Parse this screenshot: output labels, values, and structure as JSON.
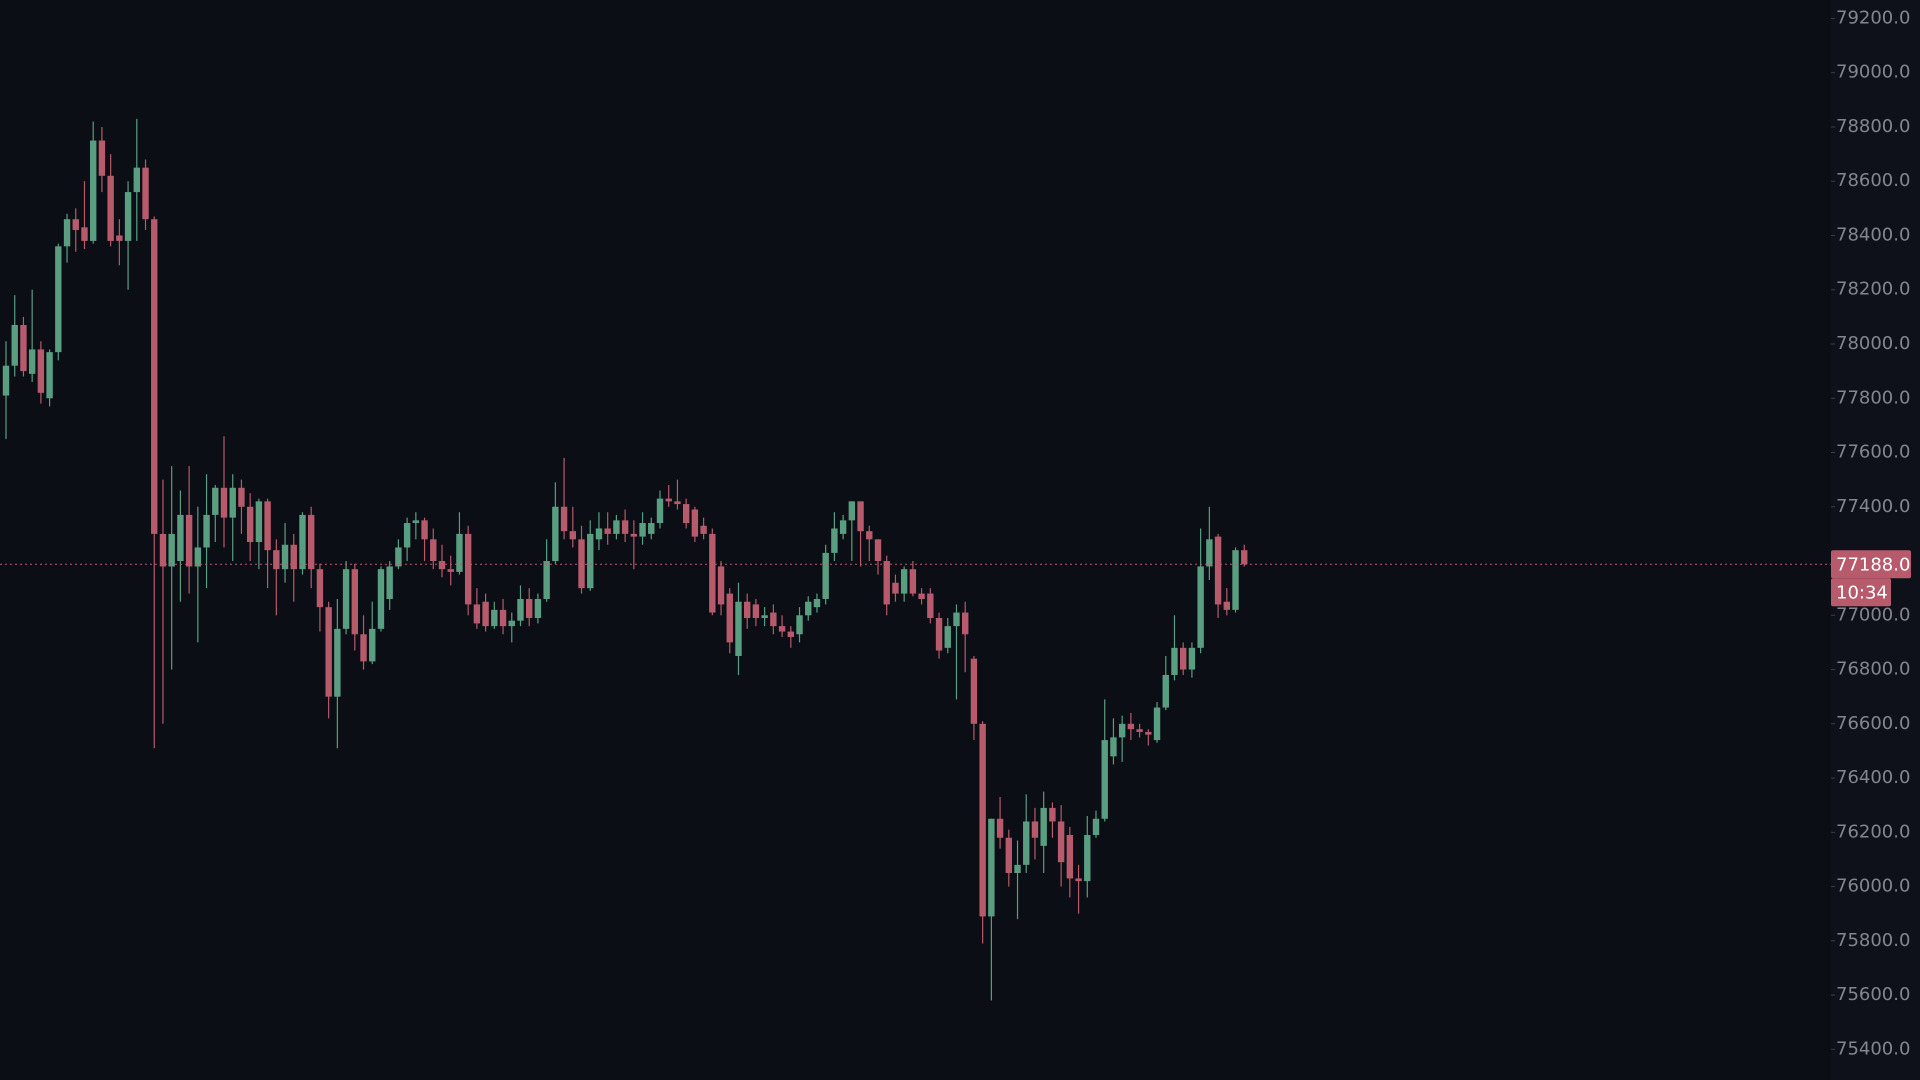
{
  "chart_data": {
    "type": "candlestick",
    "up_color": "#5a9e82",
    "down_color": "#b65a6c",
    "ylim": [
      75287,
      79268
    ],
    "yticks": [
      {
        "value": 79200,
        "label": "79200.0"
      },
      {
        "value": 79000,
        "label": "79000.0"
      },
      {
        "value": 78800,
        "label": "78800.0"
      },
      {
        "value": 78600,
        "label": "78600.0"
      },
      {
        "value": 78400,
        "label": "78400.0"
      },
      {
        "value": 78200,
        "label": "78200.0"
      },
      {
        "value": 78000,
        "label": "78000.0"
      },
      {
        "value": 77800,
        "label": "77800.0"
      },
      {
        "value": 77600,
        "label": "77600.0"
      },
      {
        "value": 77400,
        "label": "77400.0"
      },
      {
        "value": 77000,
        "label": "77000.0"
      },
      {
        "value": 76800,
        "label": "76800.0"
      },
      {
        "value": 76600,
        "label": "76600.0"
      },
      {
        "value": 76400,
        "label": "76400.0"
      },
      {
        "value": 76200,
        "label": "76200.0"
      },
      {
        "value": 76000,
        "label": "76000.0"
      },
      {
        "value": 75800,
        "label": "75800.0"
      },
      {
        "value": 75600,
        "label": "75600.0"
      },
      {
        "value": 75400,
        "label": "75400.0"
      }
    ],
    "last_price": {
      "value": 77188,
      "label": "77188.0"
    },
    "countdown": "10:34",
    "ohlc": [
      [
        77810,
        78010,
        77650,
        77920
      ],
      [
        77920,
        78180,
        77880,
        78070
      ],
      [
        78070,
        78100,
        77880,
        77900
      ],
      [
        77890,
        78200,
        77860,
        77980
      ],
      [
        77980,
        78010,
        77780,
        77820
      ],
      [
        77800,
        77980,
        77770,
        77970
      ],
      [
        77970,
        78370,
        77940,
        78360
      ],
      [
        78360,
        78480,
        78300,
        78460
      ],
      [
        78460,
        78500,
        78340,
        78420
      ],
      [
        78430,
        78600,
        78350,
        78380
      ],
      [
        78380,
        78820,
        78370,
        78750
      ],
      [
        78750,
        78800,
        78560,
        78620
      ],
      [
        78620,
        78700,
        78360,
        78380
      ],
      [
        78400,
        78460,
        78290,
        78380
      ],
      [
        78380,
        78600,
        78200,
        78560
      ],
      [
        78560,
        78830,
        78380,
        78650
      ],
      [
        78650,
        78680,
        78420,
        78460
      ],
      [
        78460,
        78470,
        76510,
        77300
      ],
      [
        77300,
        77500,
        76600,
        77180
      ],
      [
        77180,
        77550,
        76800,
        77300
      ],
      [
        77200,
        77460,
        77050,
        77370
      ],
      [
        77370,
        77550,
        77080,
        77180
      ],
      [
        77180,
        77400,
        76900,
        77250
      ],
      [
        77250,
        77520,
        77100,
        77370
      ],
      [
        77370,
        77480,
        77270,
        77470
      ],
      [
        77470,
        77660,
        77250,
        77360
      ],
      [
        77360,
        77520,
        77200,
        77470
      ],
      [
        77470,
        77500,
        77300,
        77400
      ],
      [
        77400,
        77450,
        77200,
        77270
      ],
      [
        77270,
        77430,
        77170,
        77420
      ],
      [
        77420,
        77430,
        77100,
        77240
      ],
      [
        77240,
        77280,
        77000,
        77170
      ],
      [
        77170,
        77340,
        77120,
        77260
      ],
      [
        77260,
        77300,
        77050,
        77170
      ],
      [
        77170,
        77380,
        77150,
        77370
      ],
      [
        77370,
        77400,
        77100,
        77170
      ],
      [
        77170,
        77190,
        76940,
        77030
      ],
      [
        77030,
        77050,
        76620,
        76700
      ],
      [
        76700,
        77060,
        76510,
        76950
      ],
      [
        76950,
        77200,
        76930,
        77170
      ],
      [
        77170,
        77190,
        76870,
        76930
      ],
      [
        76930,
        77000,
        76800,
        76830
      ],
      [
        76830,
        77050,
        76820,
        76950
      ],
      [
        76950,
        77180,
        76940,
        77170
      ],
      [
        77060,
        77200,
        77020,
        77180
      ],
      [
        77180,
        77280,
        77170,
        77250
      ],
      [
        77250,
        77360,
        77200,
        77340
      ],
      [
        77340,
        77380,
        77280,
        77350
      ],
      [
        77350,
        77360,
        77200,
        77280
      ],
      [
        77280,
        77320,
        77170,
        77200
      ],
      [
        77200,
        77260,
        77140,
        77170
      ],
      [
        77170,
        77220,
        77110,
        77160
      ],
      [
        77160,
        77380,
        77150,
        77300
      ],
      [
        77300,
        77330,
        77000,
        77040
      ],
      [
        77040,
        77100,
        76950,
        76970
      ],
      [
        77050,
        77080,
        76940,
        76960
      ],
      [
        76960,
        77050,
        76950,
        77020
      ],
      [
        77020,
        77060,
        76930,
        76960
      ],
      [
        76960,
        77010,
        76900,
        76980
      ],
      [
        76980,
        77110,
        76960,
        77060
      ],
      [
        77060,
        77100,
        76960,
        76990
      ],
      [
        76990,
        77080,
        76970,
        77060
      ],
      [
        77060,
        77280,
        77050,
        77200
      ],
      [
        77200,
        77490,
        77190,
        77400
      ],
      [
        77400,
        77580,
        77280,
        77310
      ],
      [
        77310,
        77400,
        77250,
        77280
      ],
      [
        77280,
        77330,
        77080,
        77100
      ],
      [
        77100,
        77350,
        77090,
        77300
      ],
      [
        77280,
        77380,
        77240,
        77320
      ],
      [
        77320,
        77380,
        77260,
        77300
      ],
      [
        77300,
        77370,
        77280,
        77350
      ],
      [
        77350,
        77390,
        77270,
        77300
      ],
      [
        77300,
        77350,
        77170,
        77290
      ],
      [
        77290,
        77380,
        77260,
        77340
      ],
      [
        77300,
        77360,
        77280,
        77340
      ],
      [
        77340,
        77460,
        77320,
        77430
      ],
      [
        77430,
        77480,
        77400,
        77420
      ],
      [
        77420,
        77500,
        77390,
        77410
      ],
      [
        77410,
        77430,
        77320,
        77340
      ],
      [
        77390,
        77400,
        77270,
        77290
      ],
      [
        77330,
        77360,
        77280,
        77300
      ],
      [
        77300,
        77320,
        77000,
        77010
      ],
      [
        77180,
        77200,
        77000,
        77040
      ],
      [
        77080,
        77100,
        76860,
        76900
      ],
      [
        76850,
        77120,
        76780,
        77050
      ],
      [
        77050,
        77080,
        76950,
        76990
      ],
      [
        77040,
        77060,
        76960,
        76990
      ],
      [
        76990,
        77030,
        76960,
        77000
      ],
      [
        77010,
        77040,
        76930,
        76960
      ],
      [
        76960,
        77000,
        76920,
        76940
      ],
      [
        76940,
        76960,
        76880,
        76920
      ],
      [
        76930,
        77030,
        76900,
        77000
      ],
      [
        77000,
        77070,
        76980,
        77050
      ],
      [
        77030,
        77080,
        77010,
        77060
      ],
      [
        77060,
        77260,
        77040,
        77230
      ],
      [
        77230,
        77380,
        77200,
        77320
      ],
      [
        77300,
        77370,
        77280,
        77350
      ],
      [
        77350,
        77420,
        77200,
        77420
      ],
      [
        77420,
        77420,
        77180,
        77310
      ],
      [
        77310,
        77330,
        77200,
        77280
      ],
      [
        77280,
        77280,
        77150,
        77200
      ],
      [
        77200,
        77220,
        77000,
        77040
      ],
      [
        77120,
        77150,
        77050,
        77080
      ],
      [
        77080,
        77180,
        77050,
        77170
      ],
      [
        77170,
        77200,
        77070,
        77080
      ],
      [
        77080,
        77100,
        77040,
        77060
      ],
      [
        77080,
        77100,
        76970,
        76990
      ],
      [
        76990,
        77010,
        76840,
        76870
      ],
      [
        76880,
        76990,
        76860,
        76960
      ],
      [
        76960,
        77040,
        76690,
        77010
      ],
      [
        77010,
        77050,
        76790,
        76930
      ],
      [
        76840,
        76850,
        76540,
        76600
      ],
      [
        76600,
        76610,
        75790,
        75890
      ],
      [
        75890,
        76250,
        75580,
        76250
      ],
      [
        76250,
        76330,
        76140,
        76180
      ],
      [
        76180,
        76210,
        76000,
        76050
      ],
      [
        76050,
        76170,
        75880,
        76080
      ],
      [
        76080,
        76340,
        76050,
        76240
      ],
      [
        76240,
        76290,
        76100,
        76180
      ],
      [
        76150,
        76350,
        76050,
        76290
      ],
      [
        76290,
        76310,
        76180,
        76240
      ],
      [
        76240,
        76300,
        76000,
        76090
      ],
      [
        76190,
        76220,
        75960,
        76030
      ],
      [
        76030,
        76080,
        75900,
        76020
      ],
      [
        76020,
        76260,
        75960,
        76190
      ],
      [
        76190,
        76280,
        76180,
        76250
      ],
      [
        76250,
        76690,
        76240,
        76540
      ],
      [
        76480,
        76620,
        76450,
        76550
      ],
      [
        76550,
        76630,
        76460,
        76600
      ],
      [
        76600,
        76640,
        76540,
        76580
      ],
      [
        76580,
        76600,
        76550,
        76570
      ],
      [
        76570,
        76580,
        76520,
        76560
      ],
      [
        76540,
        76680,
        76530,
        76660
      ],
      [
        76660,
        76850,
        76650,
        76780
      ],
      [
        76780,
        77000,
        76760,
        76880
      ],
      [
        76880,
        76900,
        76780,
        76800
      ],
      [
        76800,
        76900,
        76770,
        76880
      ],
      [
        76880,
        77320,
        76860,
        77180
      ],
      [
        77180,
        77400,
        77130,
        77280
      ],
      [
        77290,
        77300,
        76990,
        77040
      ],
      [
        77050,
        77100,
        77000,
        77020
      ],
      [
        77020,
        77250,
        77010,
        77240
      ],
      [
        77240,
        77260,
        77180,
        77188
      ]
    ]
  }
}
